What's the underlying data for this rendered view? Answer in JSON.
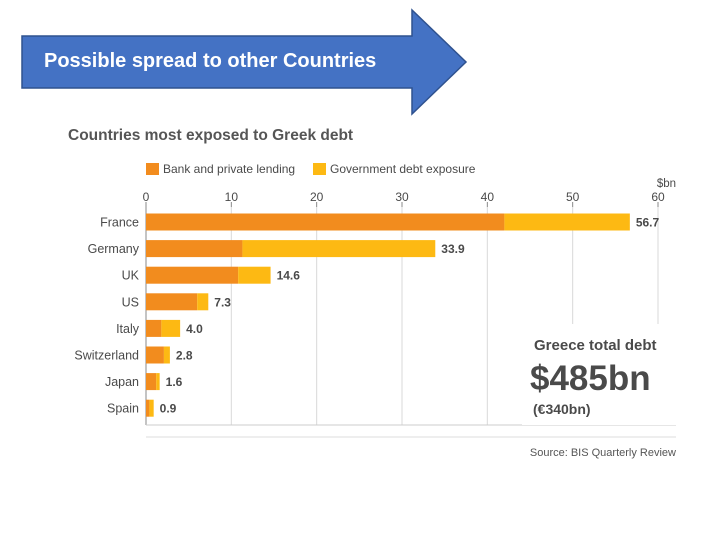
{
  "banner": {
    "label": "Possible spread to other Countries"
  },
  "colors": {
    "banner_fill": "#4472C4",
    "banner_stroke": "#2F528F",
    "bank": "#F28C1E",
    "gov": "#FDB913",
    "text": "#4a4a4a",
    "axis": "#888888"
  },
  "chart_data": {
    "type": "bar",
    "orientation": "horizontal",
    "stacked": true,
    "title": "Countries most exposed to Greek debt",
    "unit_label": "$bn",
    "xlim": [
      0,
      60
    ],
    "xticks": [
      0,
      10,
      20,
      30,
      40,
      50,
      60
    ],
    "grid": true,
    "legend_position": "top",
    "categories": [
      "France",
      "Germany",
      "UK",
      "US",
      "Italy",
      "Switzerland",
      "Japan",
      "Spain"
    ],
    "series": [
      {
        "name": "Bank and private lending",
        "values": [
          42.0,
          11.3,
          10.8,
          6.0,
          1.8,
          2.1,
          1.2,
          0.4
        ]
      },
      {
        "name": "Government debt exposure",
        "values": [
          14.7,
          22.6,
          3.8,
          1.3,
          2.2,
          0.7,
          0.4,
          0.5
        ]
      }
    ],
    "totals_labels": [
      "56.7",
      "33.9",
      "14.6",
      "7.3",
      "4.0",
      "2.8",
      "1.6",
      "0.9"
    ],
    "callout": {
      "heading": "Greece total debt",
      "value": "$485bn",
      "subvalue": "(€340bn)"
    },
    "source": "Source: BIS Quarterly Review"
  }
}
